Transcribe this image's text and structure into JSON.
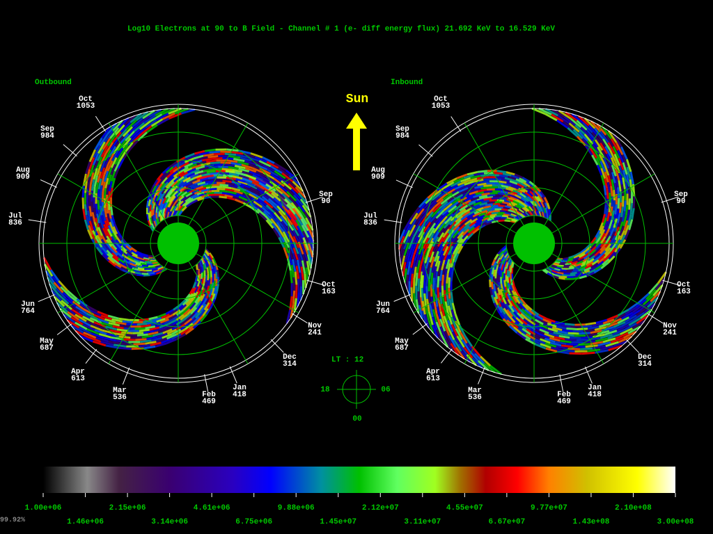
{
  "title": "Log10 Electrons at 90 to B Field - Channel # 1 (e- diff energy flux) 21.692 KeV to 16.529 KeV",
  "panels": [
    {
      "label": "Outbound",
      "months": [
        {
          "month": "Oct",
          "value": "1053"
        },
        {
          "month": "Sep",
          "value": "984"
        },
        {
          "month": "Aug",
          "value": "909"
        },
        {
          "month": "Jul",
          "value": "836"
        },
        {
          "month": "Jun",
          "value": "764"
        },
        {
          "month": "May",
          "value": "687"
        },
        {
          "month": "Apr",
          "value": "613"
        },
        {
          "month": "Mar",
          "value": "536"
        },
        {
          "month": "Feb",
          "value": "469"
        },
        {
          "month": "Jan",
          "value": "418"
        },
        {
          "month": "Dec",
          "value": "314"
        },
        {
          "month": "Nov",
          "value": "241"
        },
        {
          "month": "Oct",
          "value": "163"
        },
        {
          "month": "Sep",
          "value": "90"
        }
      ]
    },
    {
      "label": "Inbound",
      "months": [
        {
          "month": "Oct",
          "value": "1053"
        },
        {
          "month": "Sep",
          "value": "984"
        },
        {
          "month": "Aug",
          "value": "909"
        },
        {
          "month": "Jul",
          "value": "836"
        },
        {
          "month": "Jun",
          "value": "764"
        },
        {
          "month": "May",
          "value": "687"
        },
        {
          "month": "Apr",
          "value": "613"
        },
        {
          "month": "Mar",
          "value": "536"
        },
        {
          "month": "Feb",
          "value": "469"
        },
        {
          "month": "Jan",
          "value": "418"
        },
        {
          "month": "Dec",
          "value": "314"
        },
        {
          "month": "Nov",
          "value": "241"
        },
        {
          "month": "Oct",
          "value": "163"
        },
        {
          "month": "Sep",
          "value": "90"
        }
      ]
    }
  ],
  "sun_label": "Sun",
  "local_time": {
    "title": "LT :  12",
    "left": "18",
    "right": "06",
    "bottom": "00"
  },
  "colorbar": {
    "upper_labels": [
      "1.00e+06",
      "2.15e+06",
      "4.61e+06",
      "9.88e+06",
      "2.12e+07",
      "4.55e+07",
      "9.77e+07",
      "2.10e+08"
    ],
    "lower_labels": [
      "1.46e+06",
      "3.14e+06",
      "6.75e+06",
      "1.45e+07",
      "3.11e+07",
      "6.67e+07",
      "1.43e+08",
      "3.00e+08"
    ]
  },
  "status": "99.92%"
}
